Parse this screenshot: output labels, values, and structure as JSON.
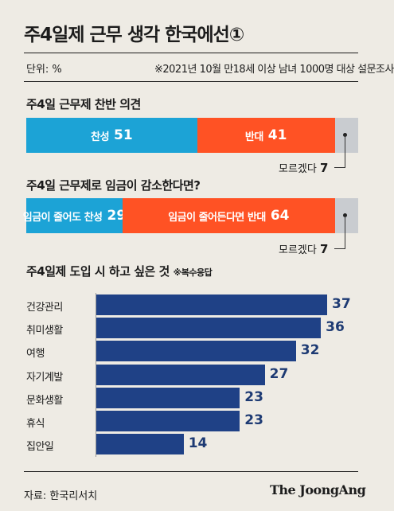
{
  "title": "주4일제 근무 생각 한국에선①",
  "unit": "단위: %",
  "note": "※2021년 10월 만18세 이상 남녀 1000명 대상 설문조사",
  "source": "자료: 한국리서치",
  "logo": "The JoongAng",
  "colors": {
    "bar_blue": "#1f4186",
    "agree": "#1ca3d6",
    "disagree": "#ff5224",
    "unknown": "#c9ccd0",
    "background": "#eeebe4"
  },
  "chart_data": [
    {
      "type": "bar",
      "stacked": true,
      "orientation": "horizontal",
      "title": "주4일 근무제 찬반 의견",
      "series": [
        {
          "name": "찬성",
          "value": 51,
          "color": "#1ca3d6"
        },
        {
          "name": "반대",
          "value": 41,
          "color": "#ff5224"
        },
        {
          "name": "모르겠다",
          "value": 7,
          "color": "#c9ccd0"
        }
      ]
    },
    {
      "type": "bar",
      "stacked": true,
      "orientation": "horizontal",
      "title": "주4일 근무제로 임금이 감소한다면?",
      "series": [
        {
          "name": "임금이 줄어도 찬성",
          "value": 29,
          "color": "#1ca3d6"
        },
        {
          "name": "임금이 줄어든다면 반대",
          "value": 64,
          "color": "#ff5224"
        },
        {
          "name": "모르겠다",
          "value": 7,
          "color": "#c9ccd0"
        }
      ]
    },
    {
      "type": "bar",
      "orientation": "horizontal",
      "title": "주4일제 도입 시 하고 싶은 것",
      "subtitle": "※복수응답",
      "categories": [
        "건강관리",
        "취미생활",
        "여행",
        "자기계발",
        "문화생활",
        "휴식",
        "집안일"
      ],
      "values": [
        37,
        36,
        32,
        27,
        23,
        23,
        14
      ],
      "color": "#1f4186"
    }
  ]
}
